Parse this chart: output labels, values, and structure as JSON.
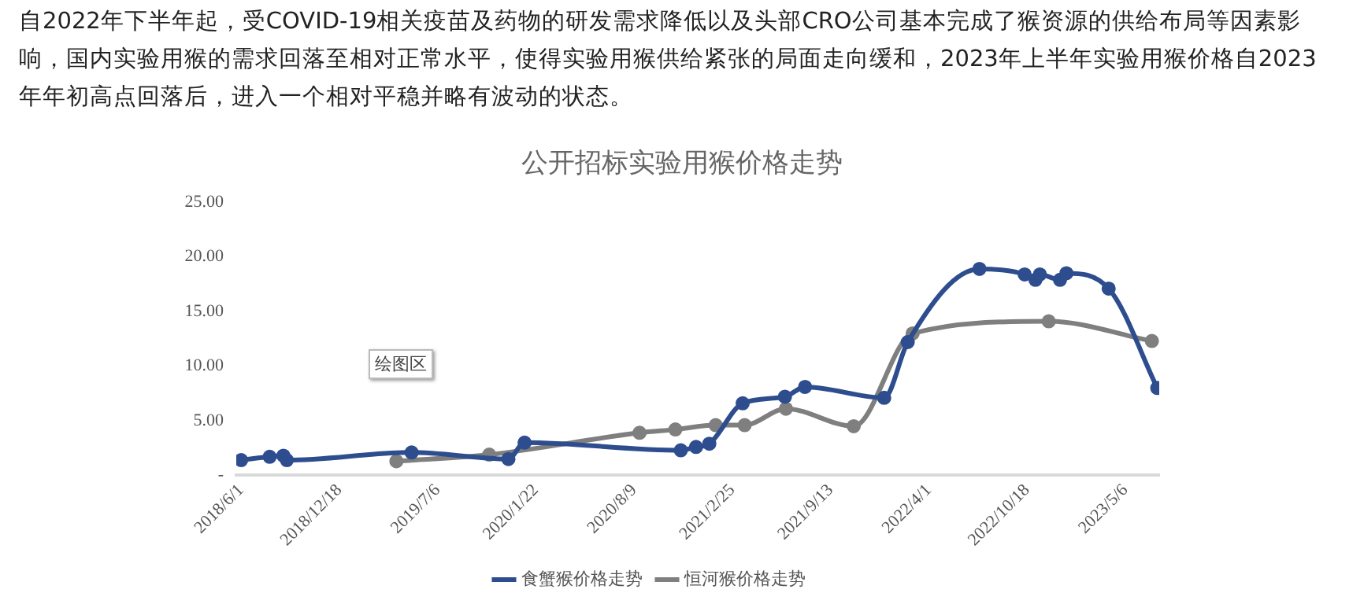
{
  "chart_data": {
    "type": "line",
    "title": "公开招标实验用猴价格走势",
    "annotations": [
      "自2022年下半年起，受COVID-19相关疫苗及药物的研发需求降低以及头部CRO公司基本完成了猴资源的供给布局等因素影响，国内实验用猴的需求回落至相对正常水平，使得实验用猴供给紧张的局面走向缓和，2023年上半年实验用猴价格自2023年年初高点回落后，进入一个相对平稳并略有波动的状态。",
      "绘图区"
    ],
    "series": [
      {
        "name": "食蟹猴价格走势",
        "color": "#2e4d8f",
        "x": [
          "2018-06-01",
          "2018-07-29",
          "2018-08-26",
          "2018-09-02",
          "2019-05-14",
          "2019-11-27",
          "2019-12-30",
          "2020-11-12",
          "2020-12-13",
          "2021-01-09",
          "2021-03-18",
          "2021-06-12",
          "2021-07-23",
          "2021-12-31",
          "2022-02-17",
          "2022-07-13",
          "2022-10-13",
          "2022-11-04",
          "2022-11-13",
          "2022-12-24",
          "2023-01-06",
          "2023-04-02",
          "2023-07-10"
        ],
        "values": [
          1.4,
          1.7,
          1.8,
          1.4,
          2.1,
          1.5,
          3.0,
          2.3,
          2.6,
          2.9,
          6.6,
          7.2,
          8.1,
          7.1,
          12.2,
          18.9,
          18.4,
          17.9,
          18.4,
          17.9,
          18.5,
          17.1,
          8.0
        ]
      },
      {
        "name": "恒河猴价格走势",
        "color": "#7f7f7f",
        "x": [
          "2019-04-13",
          "2019-10-19",
          "2020-08-20",
          "2020-11-01",
          "2021-01-22",
          "2021-03-22",
          "2021-06-14",
          "2021-10-30",
          "2022-02-27",
          "2022-12-01",
          "2023-06-29"
        ],
        "values": [
          1.3,
          1.9,
          3.9,
          4.2,
          4.6,
          4.6,
          6.1,
          4.5,
          13.0,
          14.1,
          12.3
        ]
      }
    ],
    "xlim": [
      "2018-05-22",
      "2023-07-14"
    ],
    "xticks": [
      {
        "value": "2018-06-01",
        "label": "2018/6/1"
      },
      {
        "value": "2018-12-18",
        "label": "2018/12/18"
      },
      {
        "value": "2019-07-06",
        "label": "2019/7/6"
      },
      {
        "value": "2020-01-22",
        "label": "2020/1/22"
      },
      {
        "value": "2020-08-09",
        "label": "2020/8/9"
      },
      {
        "value": "2021-02-25",
        "label": "2021/2/25"
      },
      {
        "value": "2021-09-13",
        "label": "2021/9/13"
      },
      {
        "value": "2022-04-01",
        "label": "2022/4/1"
      },
      {
        "value": "2022-10-18",
        "label": "2022/10/18"
      },
      {
        "value": "2023-05-06",
        "label": "2023/5/6"
      }
    ],
    "ylim": [
      0,
      25
    ],
    "yticks": [
      {
        "value": 0,
        "label": "-"
      },
      {
        "value": 5,
        "label": "5.00"
      },
      {
        "value": 10,
        "label": "10.00"
      },
      {
        "value": 15,
        "label": "15.00"
      },
      {
        "value": 20,
        "label": "20.00"
      },
      {
        "value": 25,
        "label": "25.00"
      }
    ],
    "grid": false,
    "legend": "bottom",
    "marker": "circle"
  }
}
